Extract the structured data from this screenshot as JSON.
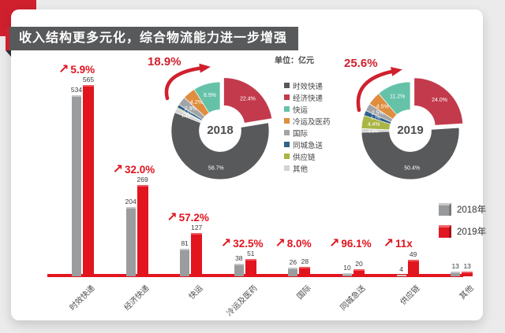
{
  "banner": {
    "title": "收入结构更多元化，综合物流能力进一步增强",
    "accent_color": "#d0202e",
    "bg_color": "#58595b"
  },
  "unit_label": "单位：亿元",
  "segment_colors": [
    "#58595b",
    "#c23a4c",
    "#65c2a9",
    "#df8d3e",
    "#a2a4a6",
    "#2f618c",
    "#a9b544",
    "#d2d3d4"
  ],
  "bar_colors": {
    "y2018": "#9b9c9e",
    "y2019": "#e2151f"
  },
  "chart_data": [
    {
      "type": "bar",
      "name": "revenue-by-segment",
      "unit": "亿元",
      "categories": [
        "时效快递",
        "经济快递",
        "快运",
        "冷运及医药",
        "国际",
        "同城急送",
        "供应链",
        "其他"
      ],
      "series": [
        {
          "name": "2018年",
          "color": "#9b9c9e",
          "values": [
            534,
            204,
            81,
            38,
            26,
            10,
            4,
            13
          ]
        },
        {
          "name": "2019年",
          "color": "#e2151f",
          "values": [
            565,
            269,
            127,
            51,
            28,
            20,
            49,
            13
          ]
        }
      ],
      "growth_labels": [
        "5.9%",
        "32.0%",
        "57.2%",
        "32.5%",
        "8.0%",
        "96.1%",
        "11x",
        ""
      ]
    },
    {
      "type": "pie",
      "name": "revenue-share-2018",
      "center_label": "2018",
      "growth_label": "18.9%",
      "labels": [
        "时效快递",
        "经济快递",
        "快运",
        "冷运及医药",
        "国际",
        "同城急送",
        "供应链",
        "其他"
      ],
      "values": [
        58.7,
        22.4,
        8.9,
        4.2,
        2.9,
        1.1,
        0.4,
        1.4
      ]
    },
    {
      "type": "pie",
      "name": "revenue-share-2019",
      "center_label": "2019",
      "growth_label": "25.6%",
      "labels": [
        "时效快递",
        "经济快递",
        "快运",
        "冷运及医药",
        "国际",
        "同城急送",
        "供应链",
        "其他"
      ],
      "values": [
        50.4,
        24.0,
        11.2,
        4.5,
        2.5,
        1.7,
        4.4,
        1.2
      ]
    }
  ]
}
